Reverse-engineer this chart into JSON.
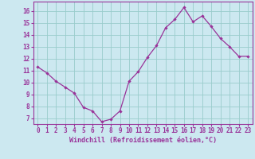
{
  "x": [
    0,
    1,
    2,
    3,
    4,
    5,
    6,
    7,
    8,
    9,
    10,
    11,
    12,
    13,
    14,
    15,
    16,
    17,
    18,
    19,
    20,
    21,
    22,
    23
  ],
  "y": [
    11.3,
    10.8,
    10.1,
    9.6,
    9.1,
    7.9,
    7.6,
    6.7,
    6.9,
    7.6,
    10.1,
    10.9,
    12.1,
    13.1,
    14.6,
    15.3,
    16.3,
    15.1,
    15.6,
    14.7,
    13.7,
    13.0,
    12.2,
    12.2
  ],
  "line_color": "#993399",
  "marker": "D",
  "marker_size": 2.2,
  "bg_color": "#cce8f0",
  "grid_color": "#99cccc",
  "axis_color": "#993399",
  "xlabel": "Windchill (Refroidissement éolien,°C)",
  "ylabel": "",
  "ylim": [
    6.5,
    16.8
  ],
  "xlim": [
    -0.5,
    23.5
  ],
  "yticks": [
    7,
    8,
    9,
    10,
    11,
    12,
    13,
    14,
    15,
    16
  ],
  "xticks": [
    0,
    1,
    2,
    3,
    4,
    5,
    6,
    7,
    8,
    9,
    10,
    11,
    12,
    13,
    14,
    15,
    16,
    17,
    18,
    19,
    20,
    21,
    22,
    23
  ],
  "tick_fontsize": 5.5,
  "xlabel_fontsize": 6.0,
  "linewidth": 0.9
}
